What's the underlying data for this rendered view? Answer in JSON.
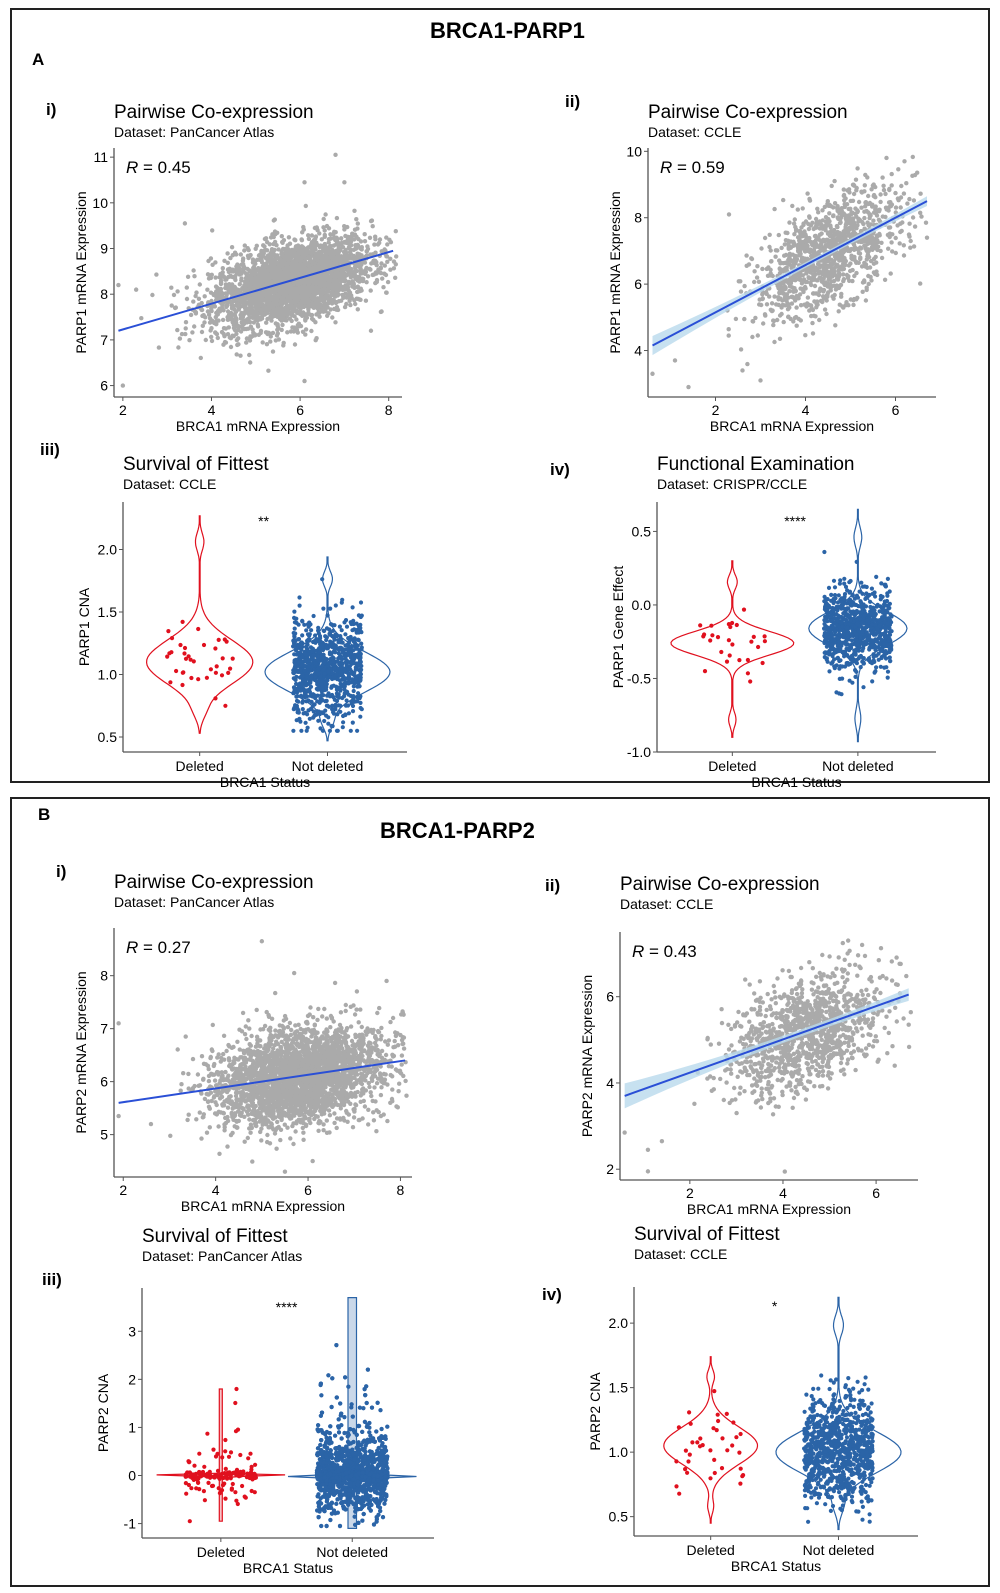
{
  "figure": {
    "sectionA": {
      "letter": "A",
      "title": "BRCA1-PARP1"
    },
    "sectionB": {
      "letter": "B",
      "title": "BRCA1-PARP2"
    }
  },
  "colors": {
    "scatter_point": "#aaaaaa",
    "fit_line": "#2a4fd6",
    "ci_band": "#b9d9ec",
    "deleted": "#e0101e",
    "not_deleted": "#2b64a7",
    "axis": "#555555"
  },
  "chart_data": [
    {
      "id": "A-i",
      "panel_label": "i)",
      "type": "scatter",
      "title": "Pairwise Co-expression",
      "subtitle": "Dataset: PanCancer Atlas",
      "xlabel": "BRCA1 mRNA Expression",
      "ylabel": "PARP1 mRNA Expression",
      "xlim": [
        1.8,
        8.3
      ],
      "ylim": [
        5.75,
        11.2
      ],
      "xticks": [
        2,
        4,
        6,
        8
      ],
      "yticks": [
        6,
        7,
        8,
        9,
        10,
        11
      ],
      "annotation": "= 0.45",
      "annotation_italic": "R",
      "fit": {
        "x": [
          1.9,
          8.1
        ],
        "y": [
          7.2,
          8.95
        ]
      },
      "ci_band": false,
      "cloud": {
        "n": 3000,
        "center": [
          5.8,
          8.25
        ],
        "sd": [
          0.9,
          0.5
        ],
        "corr": 0.45
      },
      "outliers": [
        [
          2,
          6
        ],
        [
          6.1,
          6.1
        ],
        [
          6.8,
          11.05
        ],
        [
          6.1,
          10.45
        ],
        [
          7,
          10.45
        ],
        [
          3.4,
          9.55
        ],
        [
          1.9,
          8.2
        ],
        [
          7.9,
          8.45
        ],
        [
          2.3,
          8.1
        ],
        [
          7.6,
          7.2
        ]
      ]
    },
    {
      "id": "A-ii",
      "panel_label": "ii)",
      "type": "scatter",
      "title": "Pairwise Co-expression",
      "subtitle": "Dataset: CCLE",
      "xlabel": "BRCA1 mRNA Expression",
      "ylabel": "PARP1 mRNA Expression",
      "xlim": [
        0.5,
        6.9
      ],
      "ylim": [
        2.6,
        10.1
      ],
      "xticks": [
        2,
        4,
        6
      ],
      "yticks": [
        4,
        6,
        8,
        10
      ],
      "annotation": "= 0.59",
      "annotation_italic": "R",
      "fit": {
        "x": [
          0.6,
          6.7
        ],
        "y": [
          4.15,
          8.5
        ]
      },
      "ci_band": true,
      "cloud": {
        "n": 1200,
        "center": [
          4.5,
          6.9
        ],
        "sd": [
          0.8,
          0.95
        ],
        "corr": 0.59
      },
      "outliers": [
        [
          0.6,
          3.3
        ],
        [
          1.4,
          2.9
        ],
        [
          3,
          3.1
        ],
        [
          2.6,
          3.4
        ],
        [
          5.8,
          9.8
        ],
        [
          6.2,
          9.7
        ],
        [
          6.7,
          7.4
        ],
        [
          2.3,
          8.1
        ],
        [
          1.1,
          3.7
        ]
      ]
    },
    {
      "id": "A-iii",
      "panel_label": "iii)",
      "type": "violin",
      "title": "Survival of Fittest",
      "subtitle": "Dataset: CCLE",
      "xlabel": "BRCA1 Status",
      "ylabel": "PARP1 CNA",
      "categories": [
        "Deleted",
        "Not deleted"
      ],
      "ylim": [
        0.38,
        2.38
      ],
      "yticks": [
        0.5,
        1.0,
        1.5,
        2.0
      ],
      "ytick_labels": [
        "0.5",
        "1.0",
        "1.5",
        "2.0"
      ],
      "significance": "**",
      "groups": [
        {
          "name": "Deleted",
          "n": 37,
          "center": 1.12,
          "sd": 0.22,
          "range": [
            0.53,
            2.27
          ],
          "mode": 1.1,
          "width": 0.85,
          "points_range": [
            0.75,
            2.05
          ]
        },
        {
          "name": "Not deleted",
          "n": 900,
          "center": 1.05,
          "sd": 0.2,
          "range": [
            0.47,
            1.94
          ],
          "mode": 1.02,
          "width": 1.0,
          "points_range": [
            0.55,
            1.85
          ]
        }
      ]
    },
    {
      "id": "A-iv",
      "panel_label": "iv)",
      "type": "violin",
      "title": "Functional Examination",
      "subtitle": "Dataset: CRISPR/CCLE",
      "xlabel": "BRCA1 Status",
      "ylabel": "PARP1 Gene Effect",
      "categories": [
        "Deleted",
        "Not deleted"
      ],
      "ylim": [
        -1.0,
        0.7
      ],
      "yticks": [
        -1.0,
        -0.5,
        0.0,
        0.5
      ],
      "ytick_labels": [
        "-1.0",
        "-0.5",
        "0.0",
        "0.5"
      ],
      "significance": "****",
      "groups": [
        {
          "name": "Deleted",
          "n": 28,
          "center": -0.28,
          "sd": 0.1,
          "range": [
            -0.9,
            0.3
          ],
          "mode": -0.26,
          "width": 1.0,
          "points_range": [
            -0.78,
            0.17
          ]
        },
        {
          "name": "Not deleted",
          "n": 850,
          "center": -0.17,
          "sd": 0.14,
          "range": [
            -0.93,
            0.65
          ],
          "mode": -0.16,
          "width": 0.8,
          "points_range": [
            -0.84,
            0.55
          ]
        }
      ]
    },
    {
      "id": "B-i",
      "panel_label": "i)",
      "type": "scatter",
      "title": "Pairwise Co-expression",
      "subtitle": "Dataset: PanCancer Atlas",
      "xlabel": "BRCA1 mRNA Expression",
      "ylabel": "PARP2 mRNA Expression",
      "xlim": [
        1.8,
        8.25
      ],
      "ylim": [
        4.2,
        8.9
      ],
      "xticks": [
        2,
        4,
        6,
        8
      ],
      "yticks": [
        5,
        6,
        7,
        8
      ],
      "annotation": "= 0.27",
      "annotation_italic": "R",
      "fit": {
        "x": [
          1.9,
          8.1
        ],
        "y": [
          5.6,
          6.4
        ]
      },
      "ci_band": false,
      "cloud": {
        "n": 3000,
        "center": [
          5.8,
          6.1
        ],
        "sd": [
          0.9,
          0.45
        ],
        "corr": 0.27
      },
      "outliers": [
        [
          5,
          8.65
        ],
        [
          5.7,
          8.05
        ],
        [
          7.7,
          7.9
        ],
        [
          5.5,
          4.3
        ],
        [
          6.1,
          4.5
        ],
        [
          1.9,
          7.1
        ],
        [
          1.9,
          5.35
        ],
        [
          2.6,
          5.2
        ]
      ]
    },
    {
      "id": "B-ii",
      "panel_label": "ii)",
      "type": "scatter",
      "title": "Pairwise Co-expression",
      "subtitle": "Dataset: CCLE",
      "xlabel": "BRCA1 mRNA Expression",
      "ylabel": "PARP2 mRNA Expression",
      "xlim": [
        0.5,
        6.9
      ],
      "ylim": [
        1.75,
        7.5
      ],
      "xticks": [
        2,
        4,
        6
      ],
      "yticks": [
        2,
        4,
        6
      ],
      "annotation": "= 0.43",
      "annotation_italic": "R",
      "fit": {
        "x": [
          0.6,
          6.7
        ],
        "y": [
          3.7,
          6.05
        ]
      },
      "ci_band": true,
      "cloud": {
        "n": 1200,
        "center": [
          4.5,
          5.15
        ],
        "sd": [
          0.8,
          0.7
        ],
        "corr": 0.43
      },
      "outliers": [
        [
          1.1,
          1.95
        ],
        [
          1.1,
          2.45
        ],
        [
          1.4,
          2.65
        ],
        [
          0.6,
          2.85
        ],
        [
          5.4,
          7.3
        ],
        [
          5.7,
          7.2
        ],
        [
          6.7,
          5.35
        ],
        [
          6.4,
          4.4
        ]
      ]
    },
    {
      "id": "B-iii",
      "panel_label": "iii)",
      "type": "violin",
      "title": "Survival of Fittest",
      "subtitle": "Dataset: PanCancer Atlas",
      "xlabel": "BRCA1 Status",
      "ylabel": "PARP2 CNA",
      "categories": [
        "Deleted",
        "Not deleted"
      ],
      "ylim": [
        -1.3,
        3.9
      ],
      "yticks": [
        -1,
        0,
        1,
        2,
        3
      ],
      "ytick_labels": [
        "-1",
        "0",
        "1",
        "2",
        "3"
      ],
      "significance": "****",
      "groups": [
        {
          "name": "Deleted",
          "n": 150,
          "center": 0.0,
          "sd": 0.35,
          "range": [
            -0.95,
            1.8
          ],
          "mode": 0.0,
          "width": 1.0,
          "spike": true,
          "points_range": [
            -0.95,
            1.8
          ]
        },
        {
          "name": "Not deleted",
          "n": 4500,
          "center": 0.0,
          "sd": 0.4,
          "range": [
            -1.1,
            3.7
          ],
          "mode": 0.0,
          "width": 1.0,
          "spike": true,
          "points_range": [
            -1.05,
            3.65
          ]
        }
      ]
    },
    {
      "id": "B-iv",
      "panel_label": "iv)",
      "type": "violin",
      "title": "Survival of Fittest",
      "subtitle": "Dataset: CCLE",
      "xlabel": "BRCA1 Status",
      "ylabel": "PARP2 CNA",
      "categories": [
        "Deleted",
        "Not deleted"
      ],
      "ylim": [
        0.35,
        2.28
      ],
      "yticks": [
        0.5,
        1.0,
        1.5,
        2.0
      ],
      "ytick_labels": [
        "0.5",
        "1.0",
        "1.5",
        "2.0"
      ],
      "significance": "*",
      "groups": [
        {
          "name": "Deleted",
          "n": 38,
          "center": 1.03,
          "sd": 0.18,
          "range": [
            0.45,
            1.74
          ],
          "mode": 1.05,
          "width": 0.75,
          "points_range": [
            0.63,
            1.56
          ]
        },
        {
          "name": "Not deleted",
          "n": 900,
          "center": 1.02,
          "sd": 0.2,
          "range": [
            0.4,
            2.2
          ],
          "mode": 1.0,
          "width": 1.0,
          "points_range": [
            0.46,
            2.11
          ]
        }
      ]
    }
  ]
}
